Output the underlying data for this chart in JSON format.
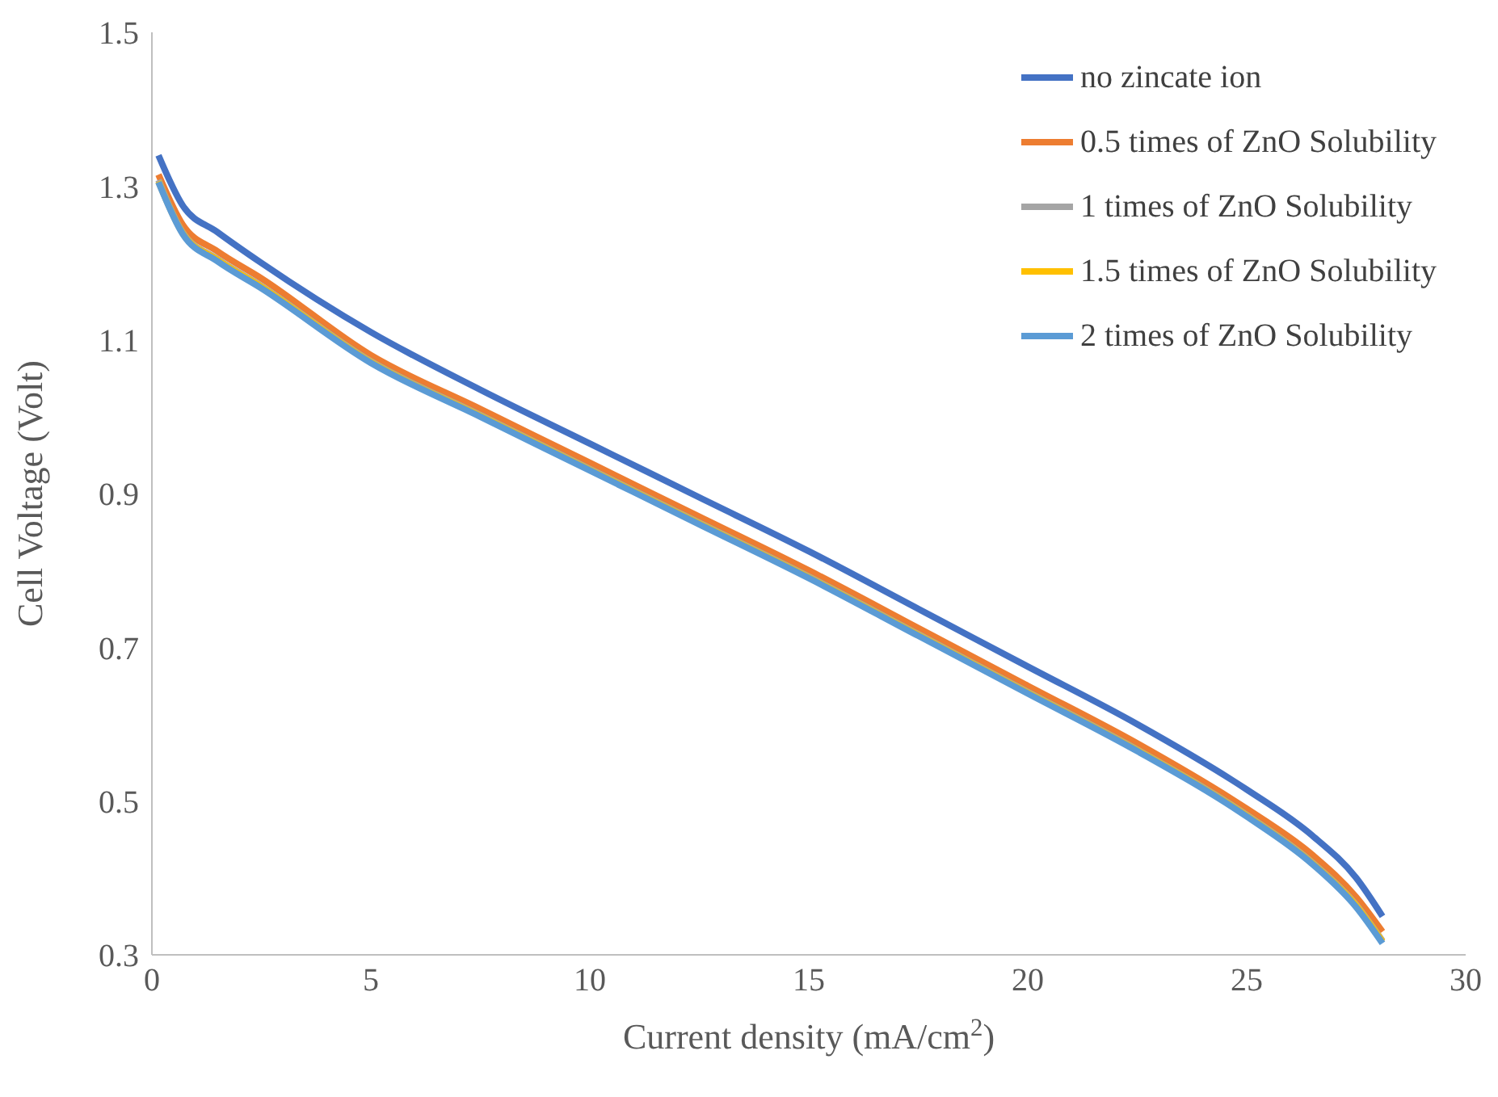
{
  "chart_data": {
    "type": "line",
    "xlabel": "Current density (mA/cm$^{2}$)",
    "ylabel": "Cell Voltage (Volt)",
    "x": [
      0.15,
      0.7,
      1.5,
      2.5,
      5,
      7.5,
      10,
      12.5,
      15,
      17.5,
      20,
      22.5,
      25,
      26.5,
      27.5,
      28.1
    ],
    "xlim": [
      0,
      30
    ],
    "xticks": [
      0,
      5,
      10,
      15,
      20,
      25,
      30
    ],
    "ylim": [
      0.3,
      1.5
    ],
    "yticks": [
      0.3,
      0.5,
      0.7,
      0.9,
      1.1,
      1.3,
      1.5
    ],
    "grid": false,
    "legend": "top right",
    "marker": "none",
    "line_style": "solid",
    "series": [
      {
        "name": "no zincate ion",
        "color": "#4472c4",
        "values": [
          1.34,
          1.275,
          1.24,
          1.2,
          1.11,
          1.035,
          0.965,
          0.895,
          0.825,
          0.75,
          0.675,
          0.6,
          0.515,
          0.455,
          0.4,
          0.35
        ]
      },
      {
        "name": "0.5 times of ZnO Solubility",
        "color": "#ed7d31",
        "values": [
          1.315,
          1.25,
          1.215,
          1.18,
          1.08,
          1.01,
          0.94,
          0.87,
          0.8,
          0.725,
          0.65,
          0.575,
          0.49,
          0.43,
          0.375,
          0.33
        ]
      },
      {
        "name": "1 times of ZnO Solubility",
        "color": "#a5a5a5",
        "values": [
          1.308,
          1.24,
          1.205,
          1.17,
          1.072,
          1.002,
          0.932,
          0.862,
          0.792,
          0.717,
          0.642,
          0.567,
          0.482,
          0.42,
          0.365,
          0.318
        ]
      },
      {
        "name": "1.5 times of ZnO Solubility",
        "color": "#ffc000",
        "values": [
          1.306,
          1.239,
          1.204,
          1.169,
          1.071,
          1.001,
          0.931,
          0.861,
          0.791,
          0.716,
          0.641,
          0.566,
          0.481,
          0.419,
          0.364,
          0.317
        ]
      },
      {
        "name": "2 times of ZnO Solubility",
        "color": "#5b9bd5",
        "values": [
          1.305,
          1.238,
          1.202,
          1.167,
          1.07,
          1.0,
          0.93,
          0.86,
          0.79,
          0.715,
          0.64,
          0.565,
          0.48,
          0.418,
          0.362,
          0.315
        ]
      }
    ]
  }
}
